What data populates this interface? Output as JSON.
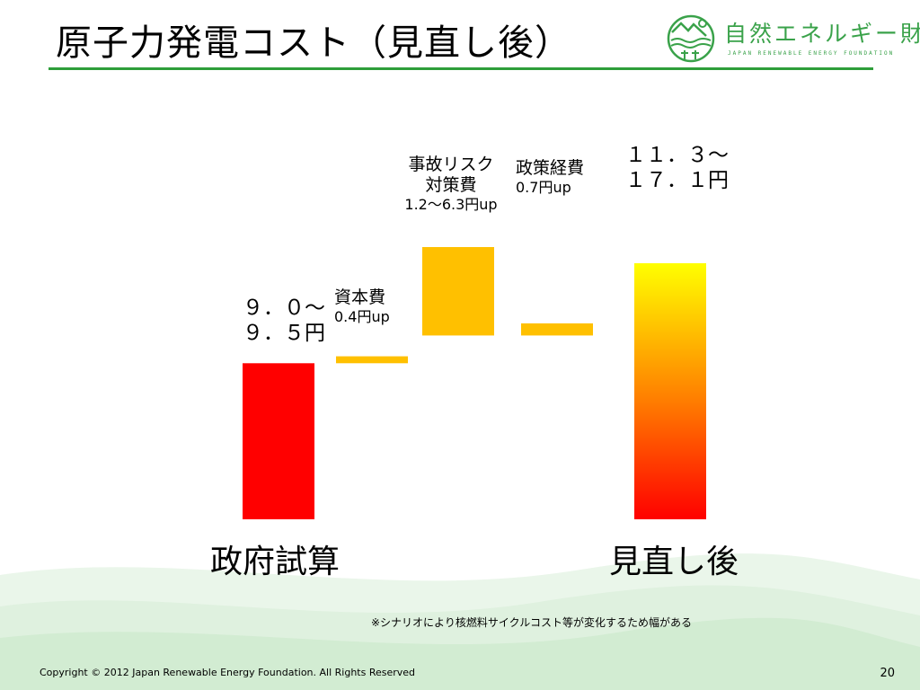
{
  "header": {
    "title": "原子力発電コスト（見直し後）"
  },
  "logo": {
    "name": "自然エネルギー財団",
    "subtitle": "JAPAN RENEWABLE ENERGY FOUNDATION"
  },
  "chart_data": {
    "type": "bar",
    "subtype": "waterfall",
    "unit": "円/kWh",
    "categories": [
      "政府試算",
      "資本費",
      "事故リスク対策費",
      "政策経費",
      "見直し後"
    ],
    "series": [
      {
        "values_low": [
          9.0,
          0.4,
          1.2,
          0.7,
          11.3
        ],
        "values_high": [
          9.5,
          0.4,
          6.3,
          0.7,
          17.1
        ]
      }
    ],
    "data_labels": [
      [
        "９．０～",
        "９．５円"
      ],
      [
        "資本費",
        "0.4円up"
      ],
      [
        "事故リスク",
        "対策費",
        "1.2～6.3円up"
      ],
      [
        "政策経費",
        "0.7円up"
      ],
      [
        "１１．３～",
        "１７．１円"
      ]
    ],
    "colors": {
      "base": "#ff0000",
      "increment": "#ffc000",
      "gradient_top": "#ffff00",
      "gradient_bottom": "#ff0000"
    },
    "grid": false,
    "legend": "none",
    "annotation": "※シナリオにより核燃料サイクルコスト等が変化するため幅がある"
  },
  "footer": {
    "copyright": "Copyright © 2012 Japan Renewable Energy Foundation. All Rights Reserved",
    "page_number": "20"
  }
}
